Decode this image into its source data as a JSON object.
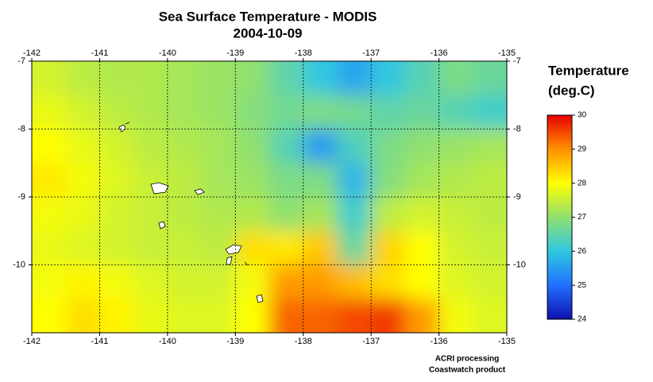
{
  "title": "Sea Surface Temperature - MODIS",
  "date": "2004-10-09",
  "map": {
    "xlim": [
      -142,
      -135
    ],
    "ylim": [
      -11,
      -7
    ],
    "xticks": [
      -142,
      -141,
      -140,
      -139,
      -138,
      -137,
      -136,
      -135
    ],
    "yticks": [
      -7,
      -8,
      -9,
      -10
    ],
    "grid": true,
    "values": [
      [
        27.6,
        27.4,
        27.3,
        27.3,
        27.2,
        27.1,
        27.0,
        26.5,
        26.0,
        25.6,
        26.0,
        26.4,
        26.8,
        26.6
      ],
      [
        27.8,
        27.6,
        27.4,
        27.3,
        27.2,
        27.1,
        26.9,
        26.7,
        26.8,
        26.7,
        26.5,
        26.6,
        26.4,
        26.2
      ],
      [
        28.0,
        27.8,
        27.6,
        27.4,
        27.3,
        27.2,
        27.0,
        26.4,
        25.5,
        26.3,
        26.8,
        27.0,
        27.1,
        27.2
      ],
      [
        28.2,
        27.9,
        27.7,
        27.5,
        27.4,
        27.2,
        27.1,
        26.8,
        26.8,
        25.8,
        26.9,
        27.2,
        27.3,
        27.4
      ],
      [
        27.9,
        27.8,
        27.6,
        27.5,
        27.4,
        27.3,
        27.3,
        27.0,
        27.2,
        26.2,
        27.4,
        27.6,
        27.5,
        27.4
      ],
      [
        27.8,
        27.7,
        27.6,
        27.5,
        27.5,
        27.4,
        28.3,
        28.2,
        28.5,
        26.6,
        28.4,
        28.0,
        27.6,
        27.5
      ],
      [
        27.9,
        28.1,
        27.9,
        27.7,
        27.6,
        27.6,
        27.9,
        28.9,
        28.9,
        28.6,
        28.3,
        28.0,
        27.7,
        27.6
      ],
      [
        28.0,
        28.3,
        28.1,
        27.8,
        27.7,
        27.7,
        28.0,
        29.3,
        29.3,
        29.5,
        29.6,
        28.9,
        27.9,
        27.7
      ]
    ]
  },
  "colorbar": {
    "title": [
      "Temperature",
      "(deg.C)"
    ],
    "range": [
      24,
      30
    ],
    "ticks": [
      24,
      25,
      26,
      27,
      28,
      29,
      30
    ],
    "colors": [
      "#1010b0",
      "#2070ff",
      "#30c8e0",
      "#90e070",
      "#ffff00",
      "#ff9000",
      "#e80000"
    ]
  },
  "credits": [
    "ACRI processing",
    "Coastwatch product"
  ]
}
